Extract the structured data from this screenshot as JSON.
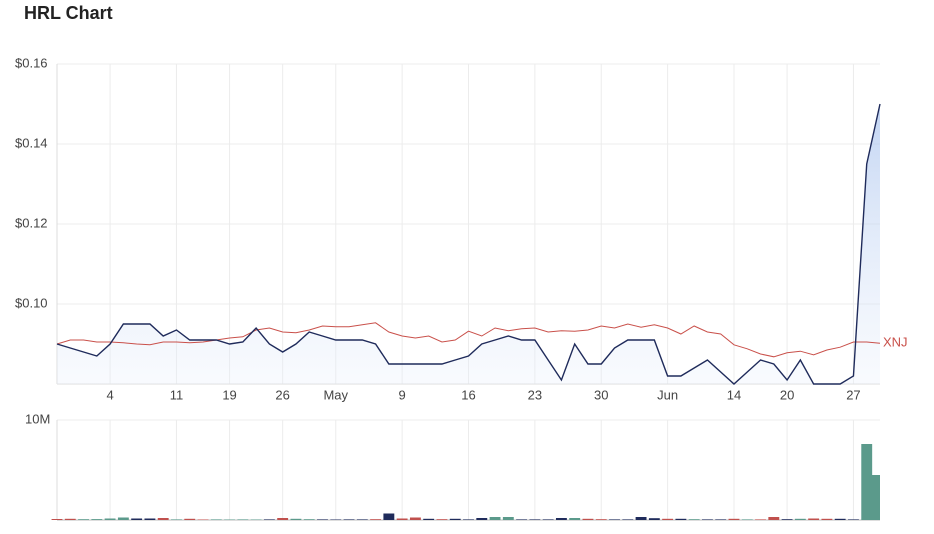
{
  "chart_data": [
    {
      "type": "line",
      "title": "HRL Chart",
      "categories": [
        null,
        null,
        null,
        null,
        "4",
        null,
        null,
        null,
        null,
        "11",
        null,
        null,
        null,
        "19",
        null,
        null,
        null,
        "26",
        null,
        null,
        null,
        "May",
        null,
        null,
        null,
        null,
        "9",
        null,
        null,
        null,
        null,
        "16",
        null,
        null,
        null,
        null,
        "23",
        null,
        null,
        null,
        null,
        "30",
        null,
        null,
        null,
        null,
        "Jun",
        null,
        null,
        null,
        null,
        "14",
        null,
        null,
        null,
        "20",
        null,
        null,
        null,
        null,
        "27",
        null,
        null
      ],
      "ylim": [
        0.08,
        0.16
      ],
      "yticks": [
        {
          "value": 0.1,
          "label": "$0.10"
        },
        {
          "value": 0.12,
          "label": "$0.12"
        },
        {
          "value": 0.14,
          "label": "$0.14"
        },
        {
          "value": 0.16,
          "label": "$0.16"
        }
      ],
      "grid": true,
      "series": [
        {
          "color": "#1f2b5b",
          "values": [
            0.09,
            0.089,
            0.088,
            0.087,
            0.09,
            0.095,
            0.095,
            0.095,
            0.092,
            0.0935,
            0.091,
            0.091,
            0.091,
            0.09,
            0.0905,
            0.094,
            0.09,
            0.088,
            0.09,
            0.093,
            0.092,
            0.091,
            0.091,
            0.091,
            0.09,
            0.085,
            0.085,
            0.085,
            0.085,
            0.085,
            0.086,
            0.087,
            0.09,
            0.091,
            0.092,
            0.091,
            0.091,
            0.086,
            0.081,
            0.09,
            0.085,
            0.085,
            0.089,
            0.091,
            0.091,
            0.091,
            0.082,
            0.082,
            0.084,
            0.086,
            0.083,
            0.08,
            0.083,
            0.086,
            0.085,
            0.081,
            0.086,
            0.08,
            0.08,
            0.08,
            0.082,
            0.135,
            0.15
          ]
        },
        {
          "name": "XNJ",
          "color": "#c9504a",
          "values": [
            0.09,
            0.091,
            0.091,
            0.0905,
            0.0905,
            0.0903,
            0.09,
            0.0898,
            0.0905,
            0.0905,
            0.0903,
            0.0905,
            0.091,
            0.0915,
            0.0918,
            0.0935,
            0.094,
            0.093,
            0.0928,
            0.0935,
            0.0945,
            0.0943,
            0.0943,
            0.0948,
            0.0953,
            0.093,
            0.092,
            0.0915,
            0.092,
            0.0905,
            0.091,
            0.0932,
            0.092,
            0.094,
            0.0933,
            0.0938,
            0.094,
            0.093,
            0.0933,
            0.0932,
            0.0935,
            0.0945,
            0.094,
            0.095,
            0.0942,
            0.0948,
            0.094,
            0.0925,
            0.0945,
            0.093,
            0.0925,
            0.0898,
            0.0888,
            0.0875,
            0.0868,
            0.0878,
            0.0882,
            0.0873,
            0.0885,
            0.0892,
            0.0905,
            0.0905,
            0.0902
          ]
        }
      ]
    },
    {
      "type": "bar",
      "ylim": [
        0,
        10000000
      ],
      "yticks": [
        {
          "value": 10000000,
          "label": "10M"
        }
      ],
      "values": [
        100000,
        120000,
        80000,
        90000,
        150000,
        250000,
        150000,
        150000,
        200000,
        60000,
        120000,
        50000,
        60000,
        50000,
        60000,
        50000,
        60000,
        200000,
        120000,
        80000,
        60000,
        50000,
        60000,
        60000,
        80000,
        650000,
        150000,
        250000,
        120000,
        80000,
        120000,
        60000,
        200000,
        300000,
        300000,
        60000,
        60000,
        60000,
        200000,
        200000,
        120000,
        80000,
        60000,
        60000,
        300000,
        180000,
        120000,
        120000,
        80000,
        60000,
        60000,
        120000,
        60000,
        60000,
        300000,
        80000,
        120000,
        150000,
        120000,
        120000,
        60000,
        7600000,
        4500000
      ],
      "colors": [
        "#c0504d",
        "#c0504d",
        "#5b9a8b",
        "#5b9a8b",
        "#5b9a8b",
        "#5b9a8b",
        "#1f2b5b",
        "#1f2b5b",
        "#c0504d",
        "#5b9a8b",
        "#c0504d",
        "#c0504d",
        "#5b9a8b",
        "#5b9a8b",
        "#5b9a8b",
        "#5b9a8b",
        "#1f2b5b",
        "#c0504d",
        "#5b9a8b",
        "#5b9a8b",
        "#1f2b5b",
        "#1f2b5b",
        "#1f2b5b",
        "#1f2b5b",
        "#c0504d",
        "#1f2b5b",
        "#c0504d",
        "#c0504d",
        "#1f2b5b",
        "#c0504d",
        "#1f2b5b",
        "#1f2b5b",
        "#1f2b5b",
        "#5b9a8b",
        "#5b9a8b",
        "#1f2b5b",
        "#1f2b5b",
        "#1f2b5b",
        "#1f2b5b",
        "#5b9a8b",
        "#c0504d",
        "#c0504d",
        "#1f2b5b",
        "#1f2b5b",
        "#1f2b5b",
        "#1f2b5b",
        "#c0504d",
        "#1f2b5b",
        "#5b9a8b",
        "#1f2b5b",
        "#1f2b5b",
        "#c0504d",
        "#5b9a8b",
        "#c0504d",
        "#c0504d",
        "#1f2b5b",
        "#5b9a8b",
        "#c0504d",
        "#c0504d",
        "#1f2b5b",
        "#1f2b5b",
        "#5b9a8b",
        "#5b9a8b"
      ]
    }
  ]
}
